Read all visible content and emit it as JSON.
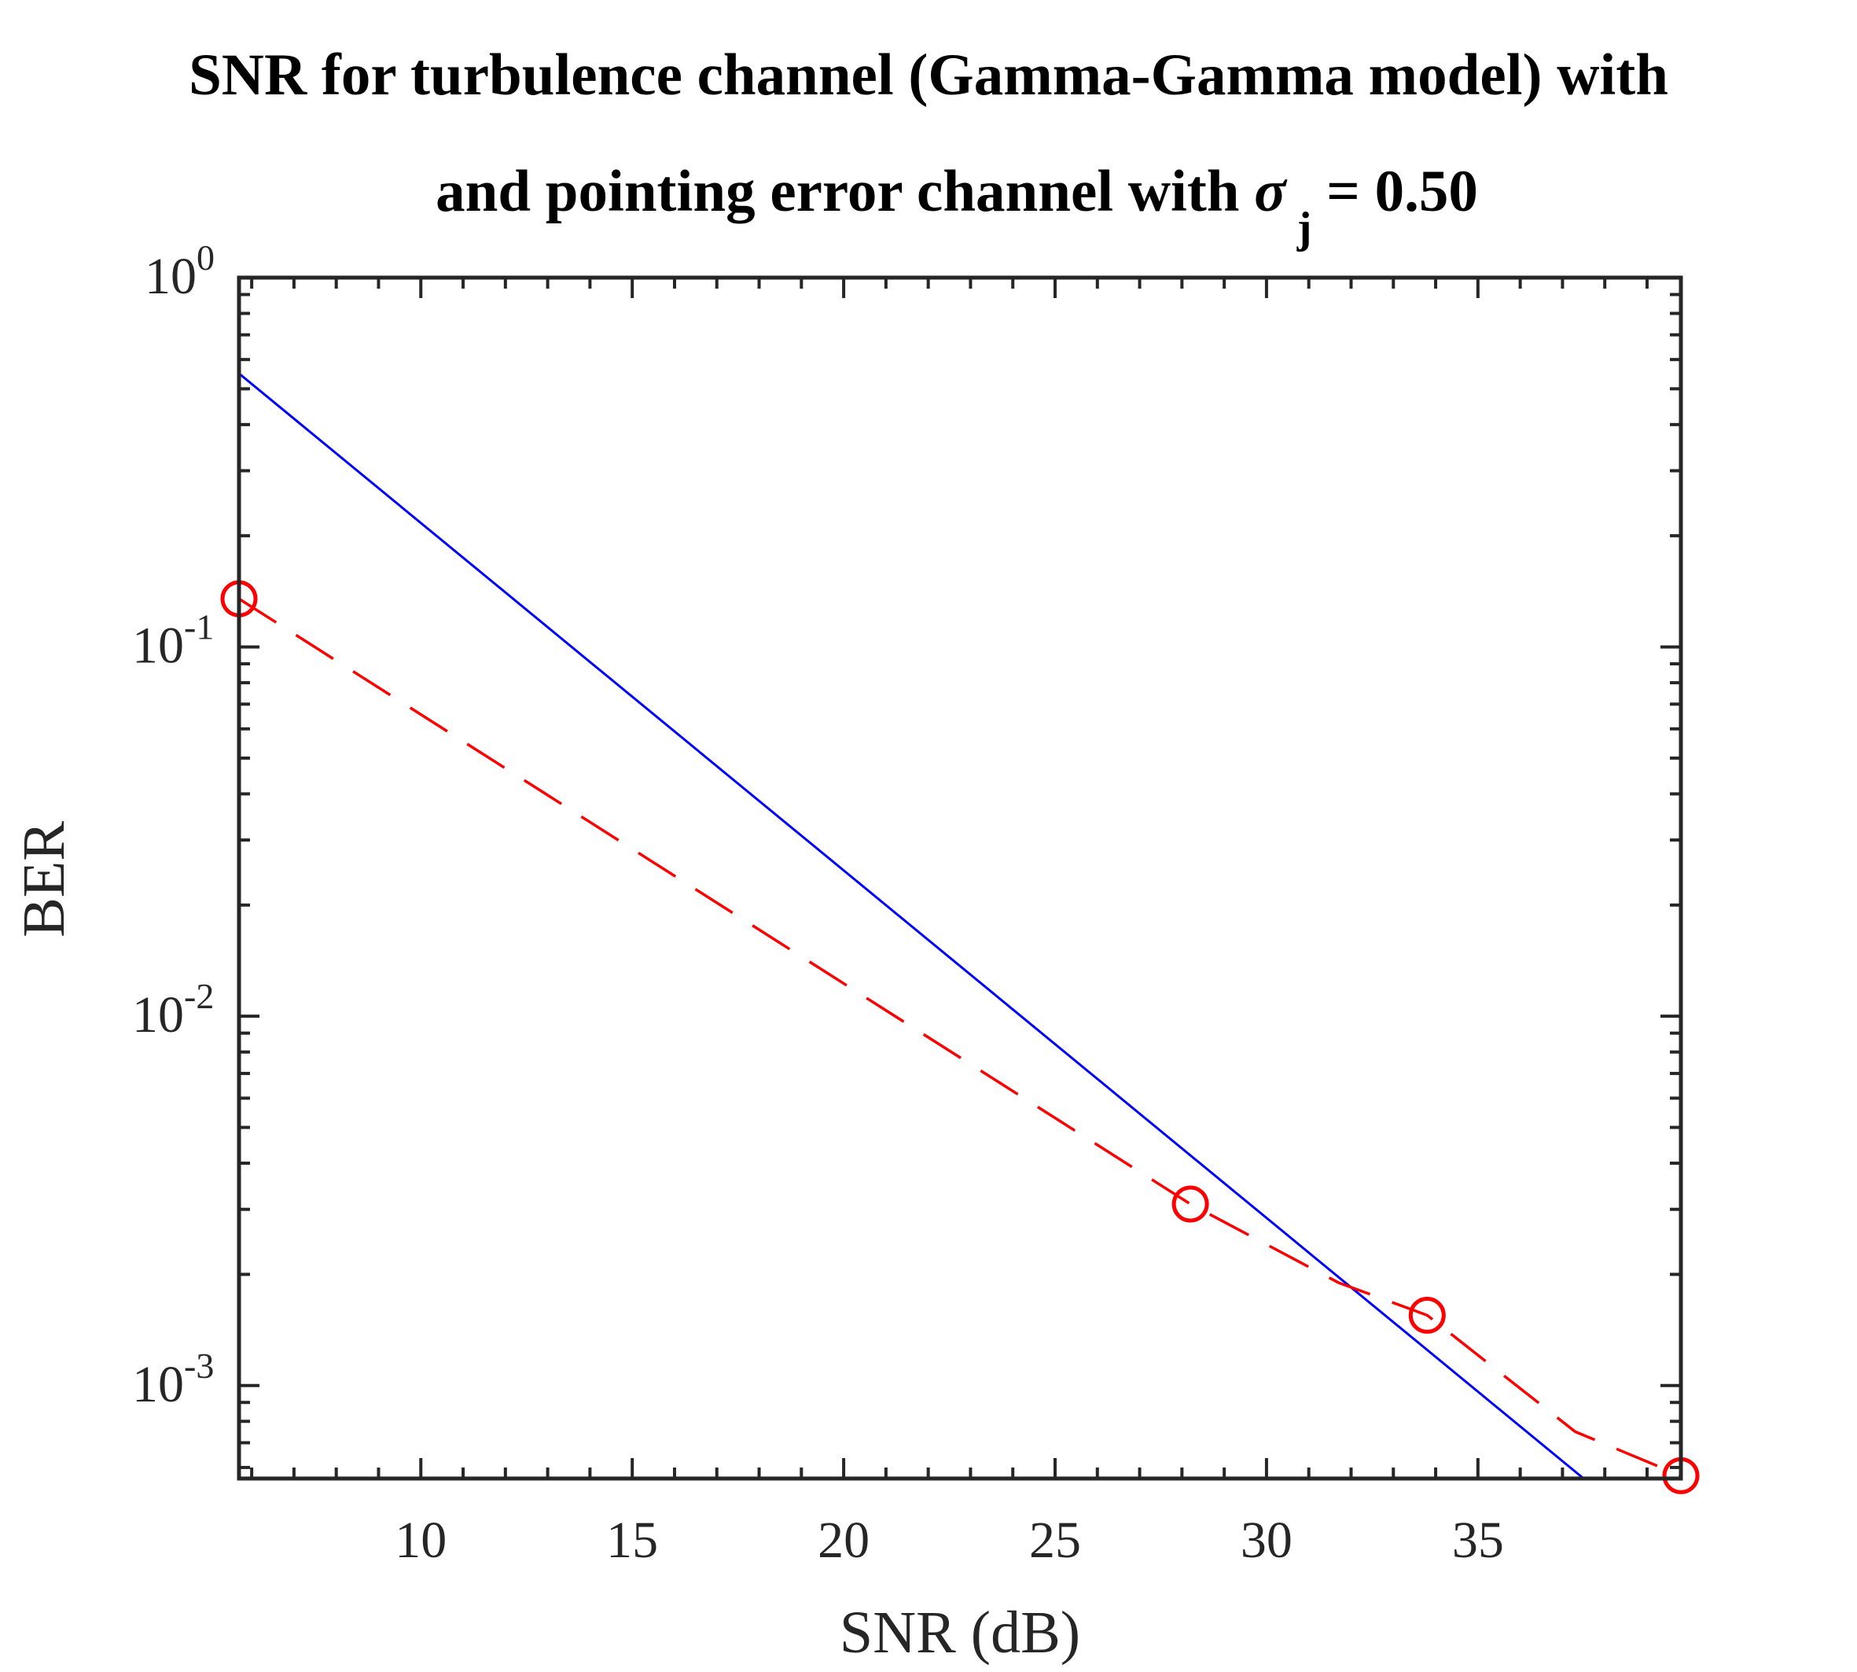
{
  "chart_data": {
    "type": "line",
    "title_line1": "SNR for turbulence channel (Gamma-Gamma model) with",
    "title_line2_prefix": "and pointing error channel with ",
    "title_sigma": "σ",
    "title_sigma_sub": "j",
    "title_line2_suffix": " = 0.50",
    "xlabel": "SNR (dB)",
    "ylabel": "BER",
    "xlim": [
      5.7,
      39.8
    ],
    "ylim": [
      0.00056,
      1
    ],
    "yscale": "log",
    "x_ticks": [
      10,
      15,
      20,
      25,
      30,
      35
    ],
    "x_tick_labels": [
      "10",
      "15",
      "20",
      "25",
      "30",
      "35"
    ],
    "y_ticks": [
      0.001,
      0.01,
      0.1,
      1
    ],
    "y_tick_labels": [
      {
        "base": "10",
        "exp": "-3"
      },
      {
        "base": "10",
        "exp": "-2"
      },
      {
        "base": "10",
        "exp": "-1"
      },
      {
        "base": "10",
        "exp": "0"
      }
    ],
    "grid": false,
    "series": [
      {
        "color": "#0000ff",
        "style": "solid",
        "marker": "none",
        "x": [
          5.7,
          37.5
        ],
        "y": [
          0.55,
          0.00056
        ]
      },
      {
        "color": "#ff0000",
        "style": "dashed",
        "marker": "none",
        "x": [
          5.7,
          28.2,
          31.7,
          33.8,
          37.3,
          39.8
        ],
        "y": [
          0.135,
          0.0031,
          0.0019,
          0.00155,
          0.00075,
          0.00057
        ]
      },
      {
        "color": "#ff0000",
        "style": "none",
        "marker": "circle",
        "x": [
          5.7,
          28.2,
          33.8,
          39.8
        ],
        "y": [
          0.135,
          0.0031,
          0.00155,
          0.00057
        ]
      }
    ]
  }
}
